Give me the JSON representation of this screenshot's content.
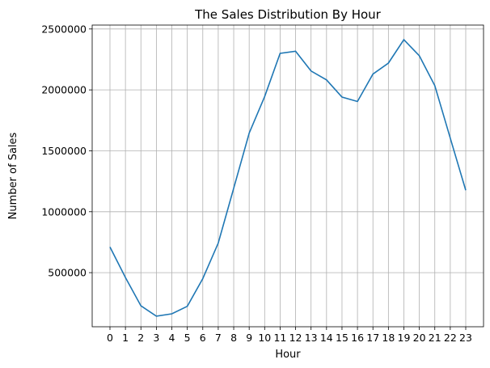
{
  "chart_data": {
    "type": "line",
    "title": "The Sales Distribution By Hour",
    "xlabel": "Hour",
    "ylabel": "Number of Sales",
    "grid": true,
    "line_color": "#1f77b4",
    "xlim": [
      -1.15,
      24.15
    ],
    "ylim": [
      56000,
      2532000
    ],
    "x_ticks": [
      0,
      1,
      2,
      3,
      4,
      5,
      6,
      7,
      8,
      9,
      10,
      11,
      12,
      13,
      14,
      15,
      16,
      17,
      18,
      19,
      20,
      21,
      22,
      23
    ],
    "y_ticks": [
      500000,
      1000000,
      1500000,
      2000000,
      2500000
    ],
    "series": [
      {
        "x": [
          0,
          1,
          2,
          3,
          4,
          5,
          6,
          7,
          8,
          9,
          10,
          11,
          12,
          13,
          14,
          15,
          16,
          17,
          18,
          19,
          20,
          21,
          22,
          23
        ],
        "values": [
          711000,
          460000,
          228000,
          143000,
          162000,
          224000,
          451000,
          743000,
          1193000,
          1645000,
          1945000,
          2300000,
          2317000,
          2155000,
          2082000,
          1941000,
          1905000,
          2130000,
          2220000,
          2412000,
          2280000,
          2035000,
          1604000,
          1176000
        ]
      }
    ]
  }
}
